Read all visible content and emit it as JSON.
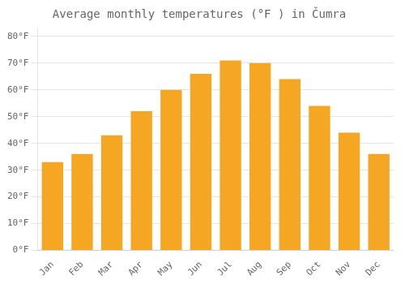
{
  "chart_data": {
    "type": "bar",
    "title": "Average monthly temperatures (°F ) in Čumra",
    "categories": [
      "Jan",
      "Feb",
      "Mar",
      "Apr",
      "May",
      "Jun",
      "Jul",
      "Aug",
      "Sep",
      "Oct",
      "Nov",
      "Dec"
    ],
    "values": [
      33,
      36,
      43,
      52,
      60,
      66,
      71,
      70,
      64,
      54,
      44,
      36
    ],
    "color": "#F5A623",
    "ylim": [
      0,
      83
    ],
    "yticks": [
      {
        "value": 0,
        "label": "0°F"
      },
      {
        "value": 10,
        "label": "10°F"
      },
      {
        "value": 20,
        "label": "20°F"
      },
      {
        "value": 30,
        "label": "30°F"
      },
      {
        "value": 40,
        "label": "40°F"
      },
      {
        "value": 50,
        "label": "50°F"
      },
      {
        "value": 60,
        "label": "60°F"
      },
      {
        "value": 70,
        "label": "70°F"
      },
      {
        "value": 80,
        "label": "80°F"
      }
    ],
    "grid": true
  }
}
